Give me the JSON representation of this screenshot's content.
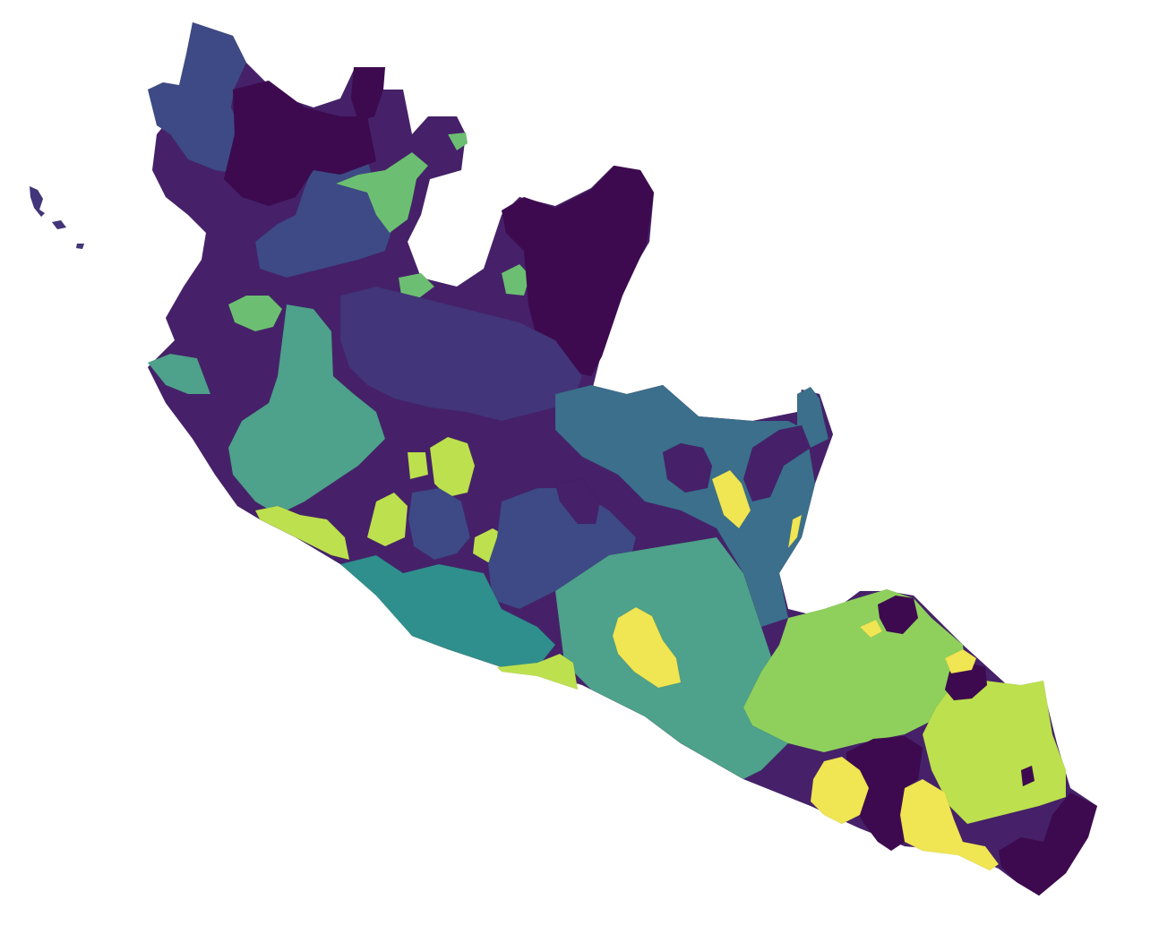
{
  "map": {
    "type": "choropleth",
    "colormap": "viridis",
    "palette": {
      "v1": "#3e0a4f",
      "v2": "#46216a",
      "v3": "#43357a",
      "v4": "#3e4a85",
      "v5": "#3b6f8c",
      "v6": "#2f8f8c",
      "v7": "#4ea18a",
      "v8": "#6cbf72",
      "v9": "#8fd05d",
      "v10": "#bde04e",
      "v11": "#f0e552"
    },
    "regions": [
      {
        "id": "north-west-block",
        "color_class": "v4"
      },
      {
        "id": "north-central-dark",
        "color_class": "v1"
      },
      {
        "id": "north-green-patch",
        "color_class": "v8"
      },
      {
        "id": "west-coast-dark",
        "color_class": "v2"
      },
      {
        "id": "northeast-dark",
        "color_class": "v2"
      },
      {
        "id": "central-dark",
        "color_class": "v3"
      },
      {
        "id": "west-teal",
        "color_class": "v7"
      },
      {
        "id": "west-coast-lime",
        "color_class": "v10"
      },
      {
        "id": "central-lime-patch",
        "color_class": "v10"
      },
      {
        "id": "central-blue",
        "color_class": "v4"
      },
      {
        "id": "east-blue-teal",
        "color_class": "v5"
      },
      {
        "id": "south-coast-teal",
        "color_class": "v6"
      },
      {
        "id": "south-central-teal",
        "color_class": "v7"
      },
      {
        "id": "south-yellow-patch",
        "color_class": "v11"
      },
      {
        "id": "east-yellow-strip",
        "color_class": "v11"
      },
      {
        "id": "southeast-green",
        "color_class": "v9"
      },
      {
        "id": "southeast-lime",
        "color_class": "v10"
      },
      {
        "id": "southeast-dark-patches",
        "color_class": "v1"
      },
      {
        "id": "southeast-yellow-patches",
        "color_class": "v11"
      },
      {
        "id": "islands",
        "color_class": "v3"
      }
    ]
  }
}
